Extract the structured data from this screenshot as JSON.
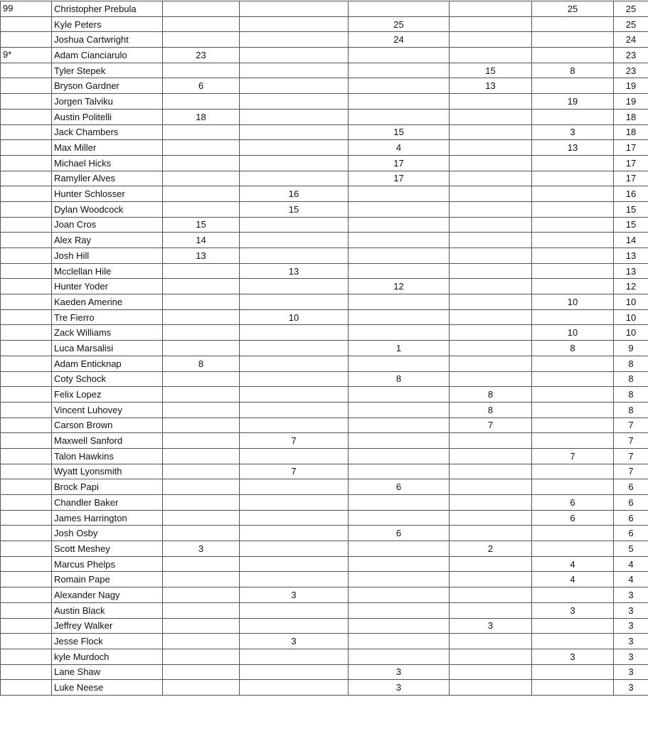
{
  "table": {
    "rows": [
      [
        "99",
        "Christopher Prebula",
        "",
        "",
        "",
        "",
        "25",
        "25"
      ],
      [
        "",
        "Kyle Peters",
        "",
        "",
        "25",
        "",
        "",
        "25"
      ],
      [
        "",
        "Joshua Cartwright",
        "",
        "",
        "24",
        "",
        "",
        "24"
      ],
      [
        "9*",
        "Adam Cianciarulo",
        "23",
        "",
        "",
        "",
        "",
        "23"
      ],
      [
        "",
        "Tyler Stepek",
        "",
        "",
        "",
        "15",
        "8",
        "23"
      ],
      [
        "",
        "Bryson Gardner",
        "6",
        "",
        "",
        "13",
        "",
        "19"
      ],
      [
        "",
        "Jorgen Talviku",
        "",
        "",
        "",
        "",
        "19",
        "19"
      ],
      [
        "",
        "Austin Politelli",
        "18",
        "",
        "",
        "",
        "",
        "18"
      ],
      [
        "",
        "Jack Chambers",
        "",
        "",
        "15",
        "",
        "3",
        "18"
      ],
      [
        "",
        "Max Miller",
        "",
        "",
        "4",
        "",
        "13",
        "17"
      ],
      [
        "",
        "Michael Hicks",
        "",
        "",
        "17",
        "",
        "",
        "17"
      ],
      [
        "",
        "Ramyller Alves",
        "",
        "",
        "17",
        "",
        "",
        "17"
      ],
      [
        "",
        "Hunter Schlosser",
        "",
        "16",
        "",
        "",
        "",
        "16"
      ],
      [
        "",
        "Dylan Woodcock",
        "",
        "15",
        "",
        "",
        "",
        "15"
      ],
      [
        "",
        "Joan Cros",
        "15",
        "",
        "",
        "",
        "",
        "15"
      ],
      [
        "",
        "Alex Ray",
        "14",
        "",
        "",
        "",
        "",
        "14"
      ],
      [
        "",
        "Josh Hill",
        "13",
        "",
        "",
        "",
        "",
        "13"
      ],
      [
        "",
        "Mcclellan Hile",
        "",
        "13",
        "",
        "",
        "",
        "13"
      ],
      [
        "",
        "Hunter Yoder",
        "",
        "",
        "12",
        "",
        "",
        "12"
      ],
      [
        "",
        "Kaeden Amerine",
        "",
        "",
        "",
        "",
        "10",
        "10"
      ],
      [
        "",
        "Tre Fierro",
        "",
        "10",
        "",
        "",
        "",
        "10"
      ],
      [
        "",
        "Zack Williams",
        "",
        "",
        "",
        "",
        "10",
        "10"
      ],
      [
        "",
        "Luca Marsalisi",
        "",
        "",
        "1",
        "",
        "8",
        "9"
      ],
      [
        "",
        "Adam Enticknap",
        "8",
        "",
        "",
        "",
        "",
        "8"
      ],
      [
        "",
        "Coty Schock",
        "",
        "",
        "8",
        "",
        "",
        "8"
      ],
      [
        "",
        "Felix Lopez",
        "",
        "",
        "",
        "8",
        "",
        "8"
      ],
      [
        "",
        "Vincent Luhovey",
        "",
        "",
        "",
        "8",
        "",
        "8"
      ],
      [
        "",
        "Carson Brown",
        "",
        "",
        "",
        "7",
        "",
        "7"
      ],
      [
        "",
        "Maxwell Sanford",
        "",
        "7",
        "",
        "",
        "",
        "7"
      ],
      [
        "",
        "Talon Hawkins",
        "",
        "",
        "",
        "",
        "7",
        "7"
      ],
      [
        "",
        "Wyatt Lyonsmith",
        "",
        "7",
        "",
        "",
        "",
        "7"
      ],
      [
        "",
        "Brock Papi",
        "",
        "",
        "6",
        "",
        "",
        "6"
      ],
      [
        "",
        "Chandler Baker",
        "",
        "",
        "",
        "",
        "6",
        "6"
      ],
      [
        "",
        "James Harrington",
        "",
        "",
        "",
        "",
        "6",
        "6"
      ],
      [
        "",
        "Josh Osby",
        "",
        "",
        "6",
        "",
        "",
        "6"
      ],
      [
        "",
        "Scott Meshey",
        "3",
        "",
        "",
        "2",
        "",
        "5"
      ],
      [
        "",
        "Marcus Phelps",
        "",
        "",
        "",
        "",
        "4",
        "4"
      ],
      [
        "",
        "Romain Pape",
        "",
        "",
        "",
        "",
        "4",
        "4"
      ],
      [
        "",
        "Alexander Nagy",
        "",
        "3",
        "",
        "",
        "",
        "3"
      ],
      [
        "",
        "Austin Black",
        "",
        "",
        "",
        "",
        "3",
        "3"
      ],
      [
        "",
        "Jeffrey Walker",
        "",
        "",
        "",
        "3",
        "",
        "3"
      ],
      [
        "",
        "Jesse Flock",
        "",
        "3",
        "",
        "",
        "",
        "3"
      ],
      [
        "",
        "kyle Murdoch",
        "",
        "",
        "",
        "",
        "3",
        "3"
      ],
      [
        "",
        "Lane Shaw",
        "",
        "",
        "3",
        "",
        "",
        "3"
      ],
      [
        "",
        "Luke Neese",
        "",
        "",
        "3",
        "",
        "",
        "3"
      ]
    ]
  }
}
